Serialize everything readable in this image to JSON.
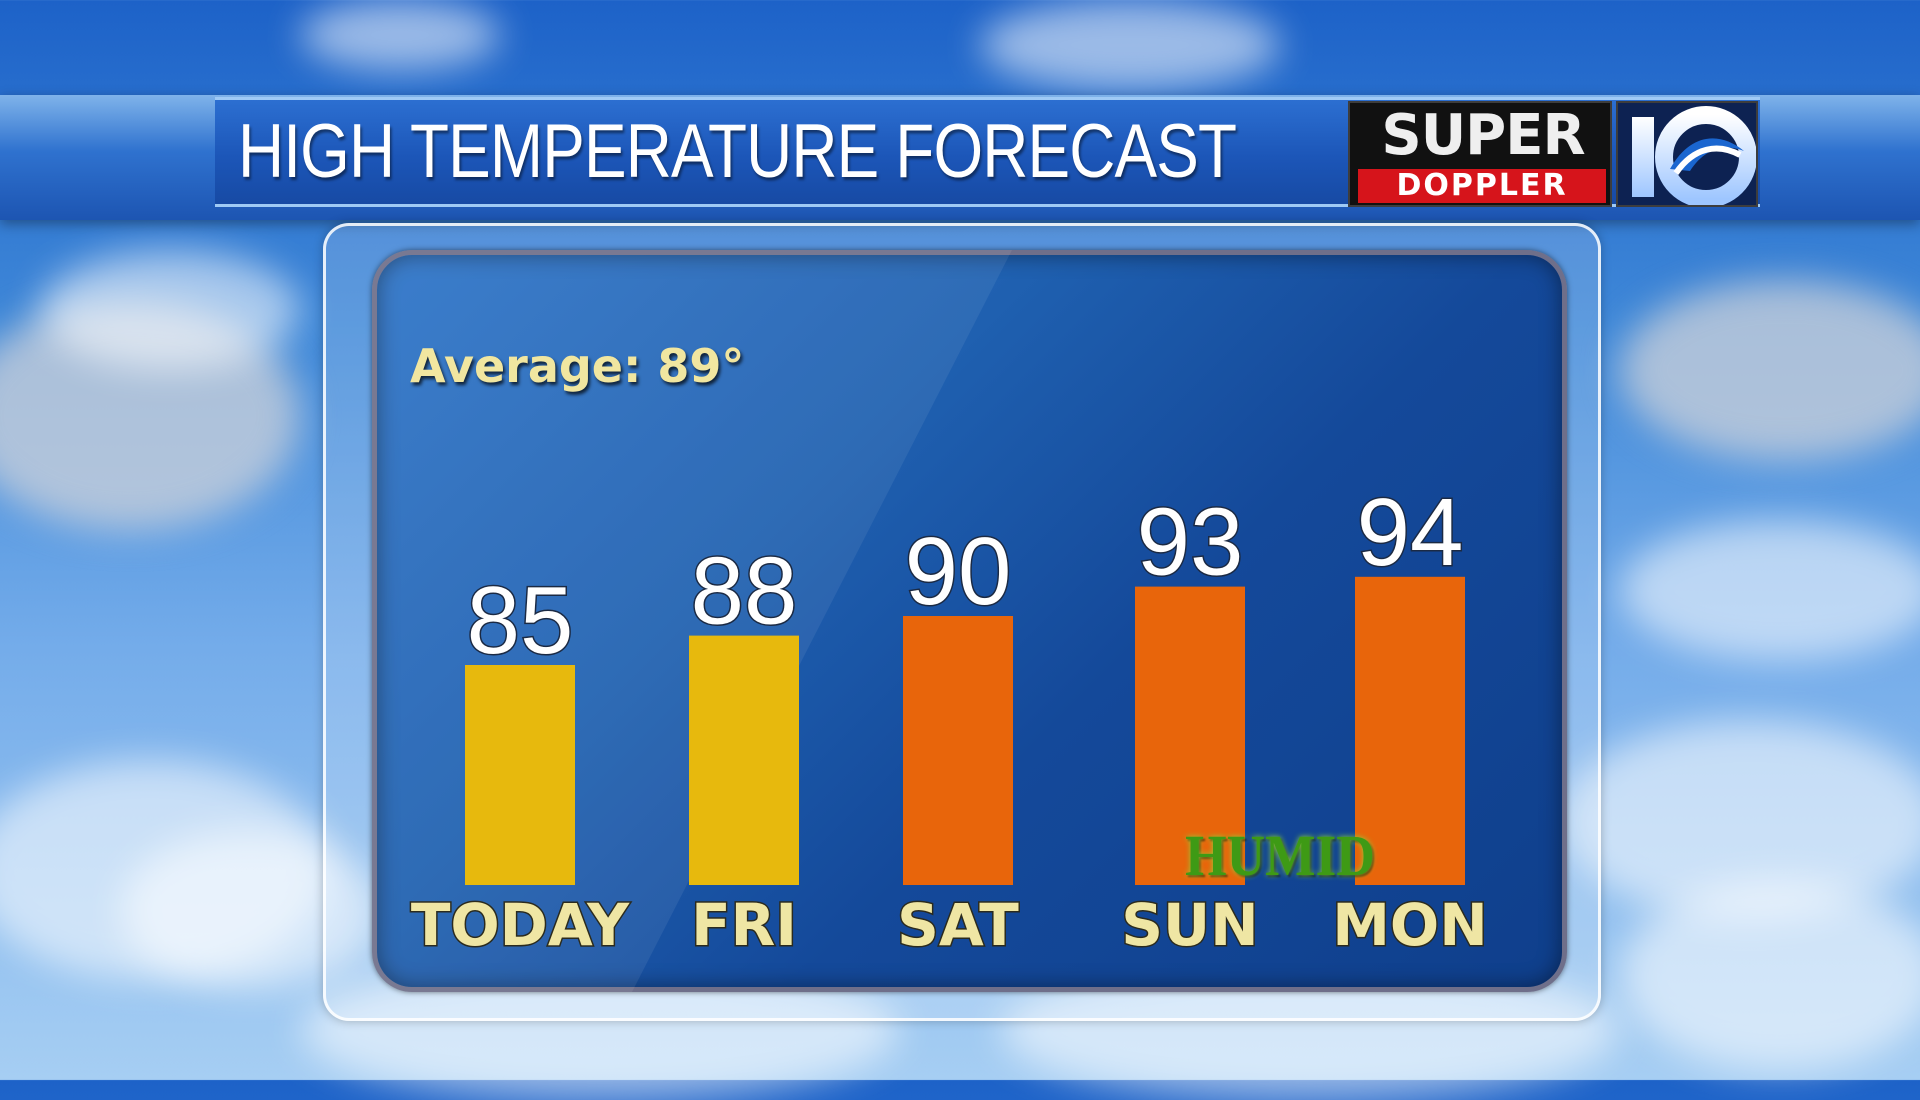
{
  "header": {
    "title": "HIGH TEMPERATURE FORECAST"
  },
  "logo": {
    "line1": "SUPER",
    "line2": "DOPPLER",
    "channel": "10"
  },
  "annotation": {
    "average": "Average: 89°",
    "humid": "HUMID"
  },
  "colors": {
    "yellow": "#e7b90d",
    "orange": "#e8650b",
    "panel": "#1a57a8",
    "label": "#efe6a4"
  },
  "chart_data": {
    "type": "bar",
    "title": "HIGH TEMPERATURE FORECAST",
    "categories": [
      "TODAY",
      "FRI",
      "SAT",
      "SUN",
      "MON"
    ],
    "values": [
      85,
      88,
      90,
      93,
      94
    ],
    "bar_colors": [
      "#e7b90d",
      "#e7b90d",
      "#e8650b",
      "#e8650b",
      "#e8650b"
    ],
    "average": 89,
    "grid": false
  }
}
